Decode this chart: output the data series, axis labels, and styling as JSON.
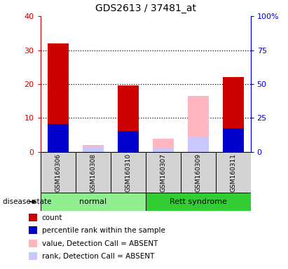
{
  "title": "GDS2613 / 37481_at",
  "samples": [
    "GSM160306",
    "GSM160308",
    "GSM160310",
    "GSM160307",
    "GSM160309",
    "GSM160311"
  ],
  "count": [
    32,
    0,
    19.5,
    0,
    0,
    22
  ],
  "percentile": [
    8.2,
    0,
    6.2,
    0,
    0,
    7.0
  ],
  "value_absent": [
    0,
    2.0,
    0,
    4.0,
    16.5,
    0
  ],
  "rank_absent": [
    0,
    1.5,
    0,
    1.0,
    4.5,
    0
  ],
  "left_ylim": [
    0,
    40
  ],
  "right_ylim": [
    0,
    100
  ],
  "left_yticks": [
    0,
    10,
    20,
    30,
    40
  ],
  "right_yticks": [
    0,
    25,
    50,
    75,
    100
  ],
  "left_yticklabels": [
    "0",
    "10",
    "20",
    "30",
    "40"
  ],
  "right_yticklabels": [
    "0",
    "25",
    "50",
    "75",
    "100%"
  ],
  "color_count": "#cc0000",
  "color_percentile": "#0000cc",
  "color_value_absent": "#ffb6c1",
  "color_rank_absent": "#c8c8ff",
  "bar_width": 0.6,
  "gray_bg": "#d3d3d3",
  "normal_color": "#90ee90",
  "rett_color": "#32cd32",
  "left_axis_color": "#cc0000",
  "right_axis_color": "#0000cc",
  "title_fontsize": 10,
  "dotted_yticks": [
    10,
    20,
    30
  ]
}
